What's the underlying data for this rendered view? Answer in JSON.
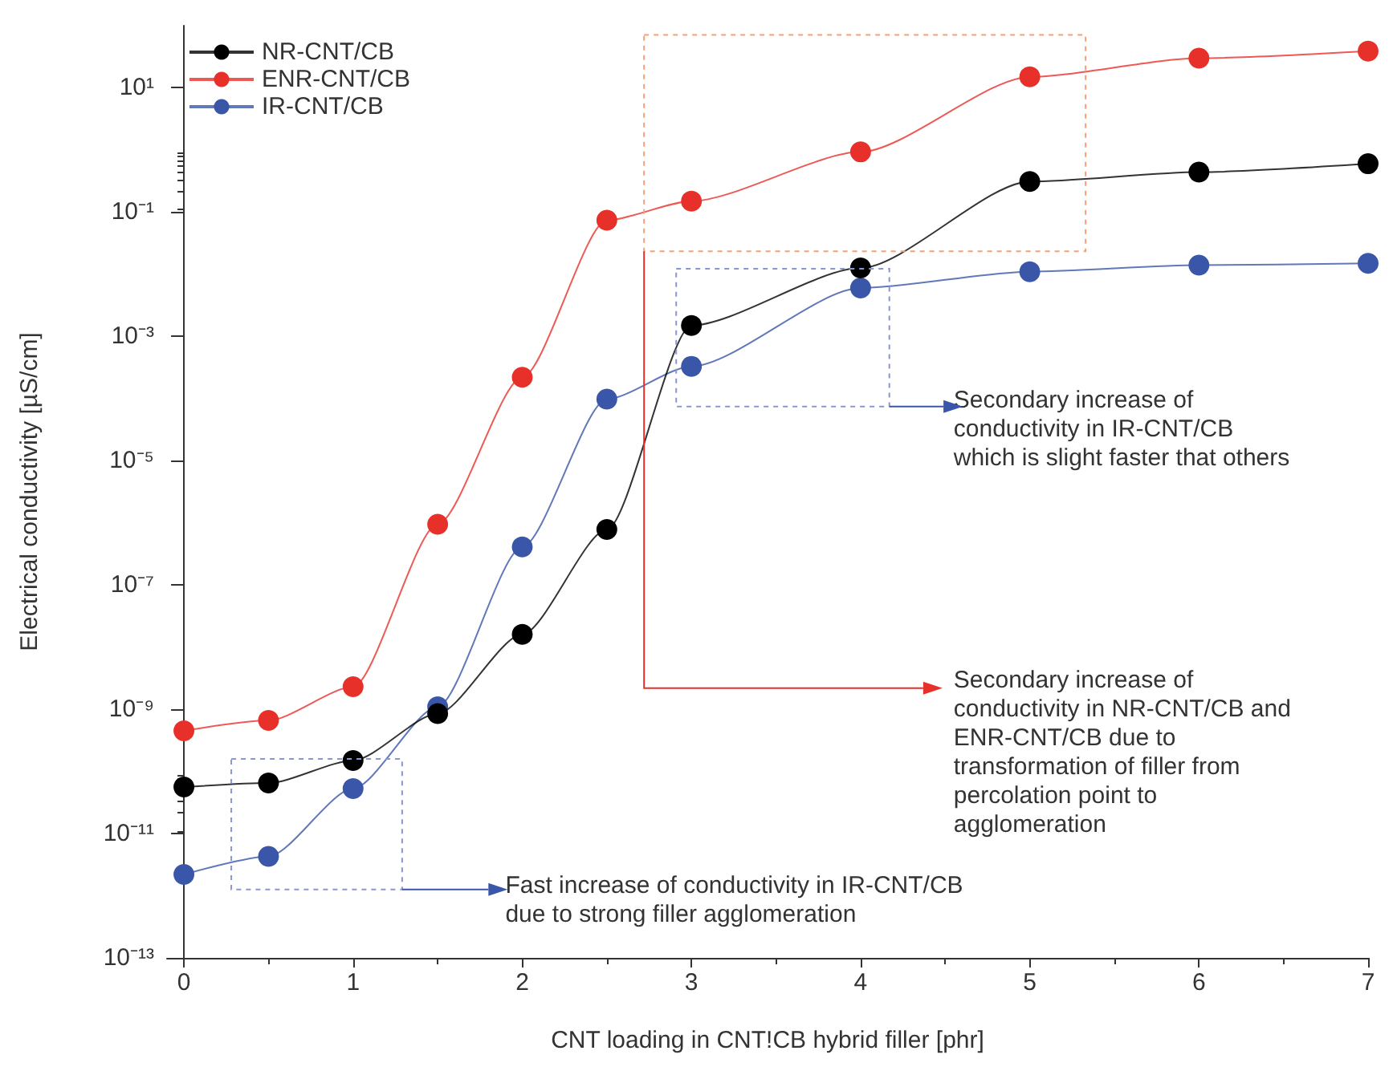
{
  "chart_data": {
    "type": "line",
    "xlabel": "CNT loading in CNT!CB hybrid filler [phr]",
    "ylabel": "Electrical conductivity [µS/cm]",
    "x": [
      0,
      0.5,
      1,
      1.5,
      2,
      2.5,
      3,
      4,
      5,
      6,
      7
    ],
    "series": [
      {
        "name": "NR-CNT/CB",
        "color": "#000000",
        "values": [
          5.6e-11,
          6.5e-11,
          1.5e-10,
          8.5e-10,
          1.6e-08,
          7.8e-07,
          0.0015,
          0.0126,
          0.31,
          0.44,
          0.6
        ]
      },
      {
        "name": "ENR-CNT/CB",
        "color": "#e8302a",
        "values": [
          4.5e-10,
          6.6e-10,
          2.3e-09,
          9.5e-07,
          0.00022,
          0.074,
          0.15,
          0.93,
          15,
          30,
          39
        ]
      },
      {
        "name": "IR-CNT/CB",
        "color": "#3a56a8",
        "values": [
          2.2e-12,
          4.3e-12,
          5.3e-11,
          1.1e-09,
          4.1e-07,
          9.8e-05,
          0.00033,
          0.006,
          0.011,
          0.014,
          0.015
        ]
      }
    ],
    "log": "y",
    "xlim": [
      -0.1,
      7
    ],
    "xticks": [
      0,
      1,
      2,
      3,
      4,
      5,
      6,
      7
    ],
    "ylim": [
      1e-13,
      100
    ],
    "yticks": [
      {
        "value": 1e-13,
        "label": "10⁻¹³"
      },
      {
        "value": 1e-11,
        "label": "10⁻¹¹"
      },
      {
        "value": 1e-09,
        "label": "10⁻⁹"
      },
      {
        "value": 1e-07,
        "label": "10⁻⁷"
      },
      {
        "value": 1e-05,
        "label": "10⁻⁵"
      },
      {
        "value": 0.001,
        "label": "10⁻³"
      },
      {
        "value": 0.1,
        "label": "10⁻¹"
      },
      {
        "value": 10,
        "label": "10¹"
      }
    ],
    "marker": "circle",
    "line_style": "solid",
    "grid": false,
    "legend": "top left",
    "annotations": [
      "Secondary increase of\nconductivity in IR-CNT/CB\nwhich is slight faster that others",
      "Secondary increase of\nconductivity in NR-CNT/CB and\nENR-CNT/CB due to\ntransformation of filler from\npercolation point to\nagglomeration",
      "Fast increase of conductivity in IR-CNT/CB\ndue to strong filler agglomeration"
    ]
  }
}
